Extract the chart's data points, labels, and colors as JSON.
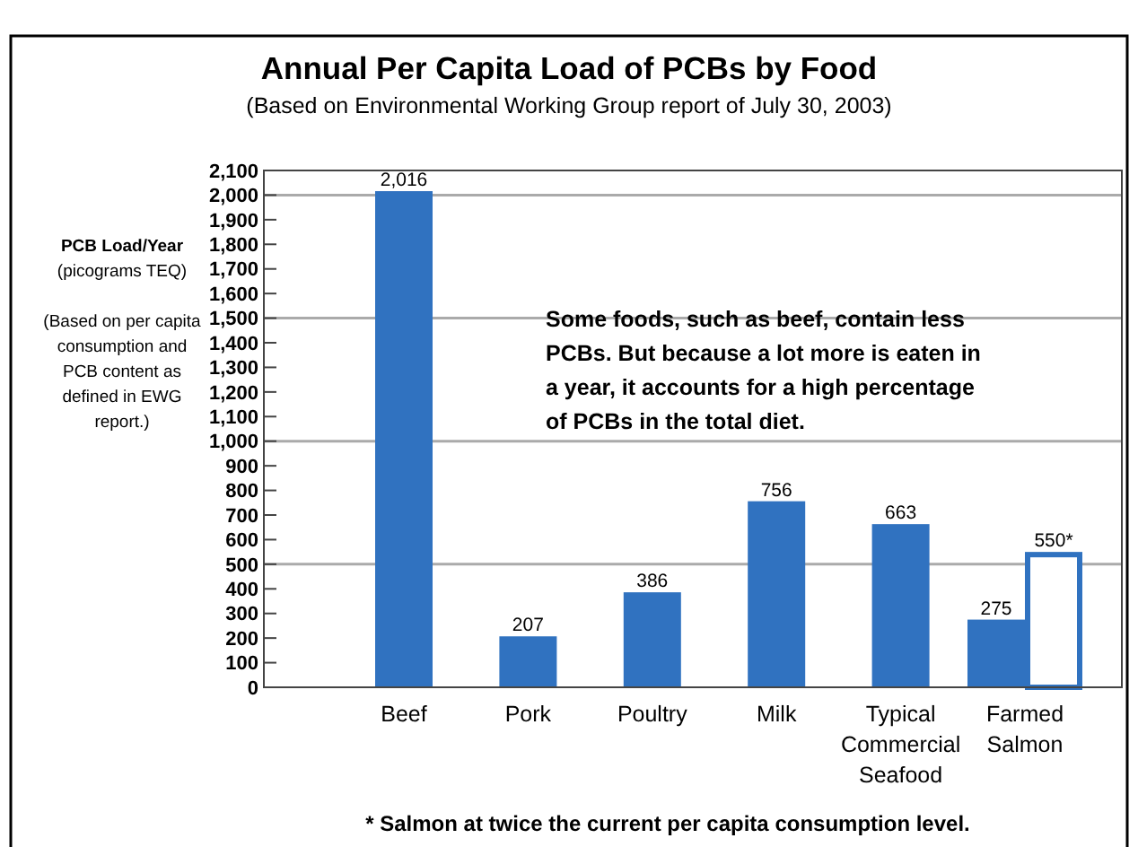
{
  "chart_data": {
    "type": "bar",
    "title": "Annual Per Capita Load of PCBs by Food",
    "subtitle": "(Based on Environmental Working Group report of July 30, 2003)",
    "ylabel": "PCB Load/Year\n(picograms TEQ)",
    "categories": [
      "Beef",
      "Pork",
      "Poultry",
      "Milk",
      "Typical Commercial Seafood",
      "Farmed Salmon"
    ],
    "series": [
      {
        "color": "#3072c0",
        "values": [
          2016,
          207,
          386,
          756,
          663,
          275
        ],
        "value_labels": [
          "2,016",
          "207",
          "386",
          "756",
          "663",
          "275"
        ]
      },
      {
        "color": "#ffffff",
        "values": [
          null,
          null,
          null,
          null,
          null,
          550
        ],
        "value_labels": [
          null,
          null,
          null,
          null,
          null,
          "550*"
        ]
      }
    ],
    "ylim": [
      0,
      2100
    ],
    "yticks": [
      {
        "value": 0,
        "label": "0"
      },
      {
        "value": 100,
        "label": "100"
      },
      {
        "value": 200,
        "label": "200"
      },
      {
        "value": 300,
        "label": "300"
      },
      {
        "value": 400,
        "label": "400"
      },
      {
        "value": 500,
        "label": "500"
      },
      {
        "value": 600,
        "label": "600"
      },
      {
        "value": 700,
        "label": "700"
      },
      {
        "value": 800,
        "label": "800"
      },
      {
        "value": 900,
        "label": "900"
      },
      {
        "value": 1000,
        "label": "1,000"
      },
      {
        "value": 1100,
        "label": "1,100"
      },
      {
        "value": 1200,
        "label": "1,200"
      },
      {
        "value": 1300,
        "label": "1,300"
      },
      {
        "value": 1400,
        "label": "1,400"
      },
      {
        "value": 1500,
        "label": "1,500"
      },
      {
        "value": 1600,
        "label": "1,600"
      },
      {
        "value": 1700,
        "label": "1,700"
      },
      {
        "value": 1800,
        "label": "1,800"
      },
      {
        "value": 1900,
        "label": "1,900"
      },
      {
        "value": 2000,
        "label": "2,000"
      },
      {
        "value": 2100,
        "label": "2,100"
      }
    ],
    "ref_lines": [
      {
        "axis": "y",
        "value": 500,
        "color": "#aaaaaa"
      },
      {
        "axis": "y",
        "value": 1000,
        "color": "#aaaaaa"
      },
      {
        "axis": "y",
        "value": 1500,
        "color": "#aaaaaa"
      },
      {
        "axis": "y",
        "value": 2000,
        "color": "#aaaaaa"
      }
    ],
    "annotations": [
      "(Based on per capita\nconsumption and\nPCB content as\ndefined in EWG\nreport.)",
      "Some foods, such as beef, contain less\nPCBs. But because a lot more is eaten in\na year, it accounts for a high percentage\nof PCBs in the total diet.",
      "* Salmon at twice the current per capita consumption level."
    ],
    "grid": false
  }
}
